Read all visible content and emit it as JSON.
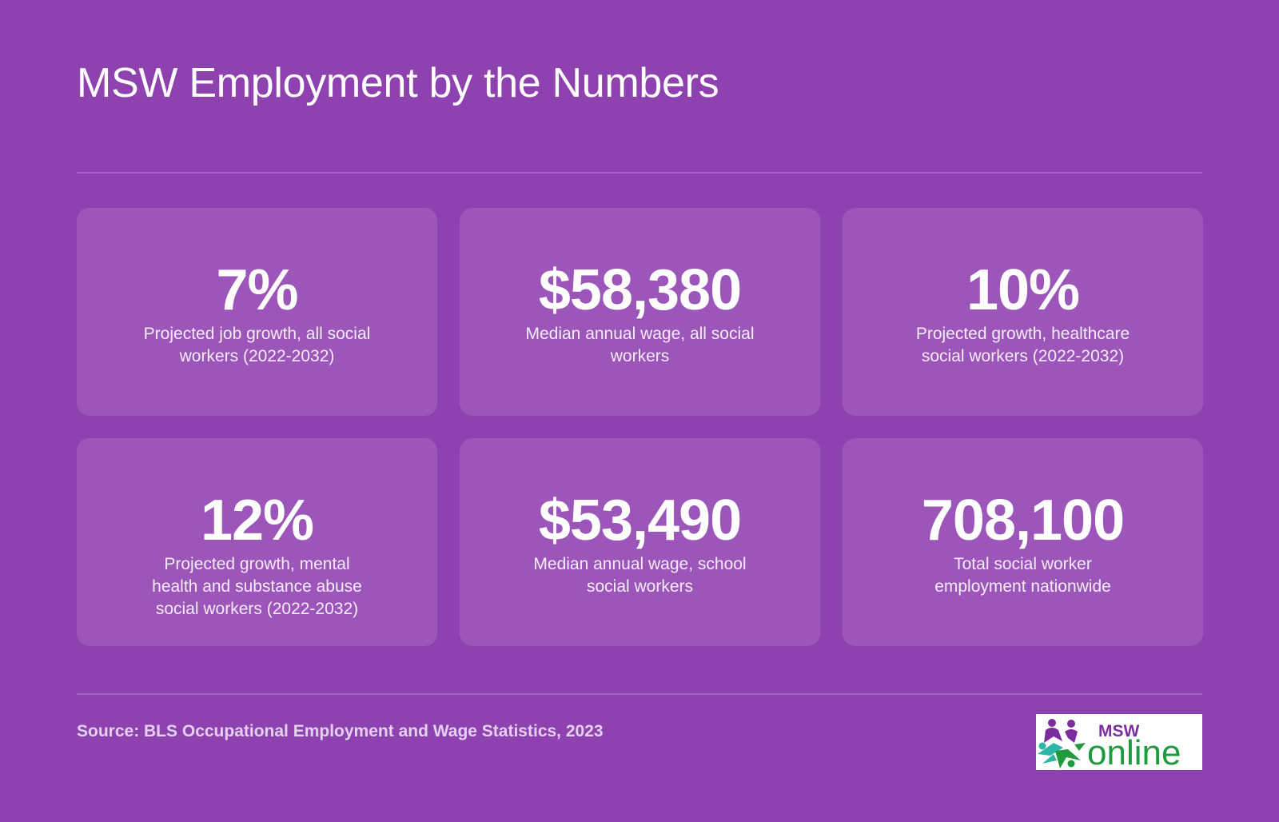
{
  "header": {
    "title": "MSW Employment by the Numbers"
  },
  "stats": [
    {
      "value": "7%",
      "label": "Projected job growth, all social workers (2022-2032)"
    },
    {
      "value": "$58,380",
      "label": "Median annual wage, all social workers"
    },
    {
      "value": "10%",
      "label": "Projected growth, healthcare social workers (2022-2032)"
    },
    {
      "value": "12%",
      "label": "Projected growth, mental health and substance abuse social workers (2022-2032)"
    },
    {
      "value": "$53,490",
      "label": "Median annual wage, school social workers"
    },
    {
      "value": "708,100",
      "label": "Total social worker employment nationwide"
    }
  ],
  "footer": {
    "source": "Source: BLS Occupational Employment and Wage Statistics, 2023"
  },
  "logo": {
    "top_text": "MSW",
    "main_text": "online",
    "icon": "people-star-icon"
  },
  "colors": {
    "background": "#8e42b0",
    "card": "#9c55b9",
    "logo_purple": "#7b2d9e",
    "logo_green": "#1f9a3e",
    "logo_teal": "#2bb6a8"
  }
}
